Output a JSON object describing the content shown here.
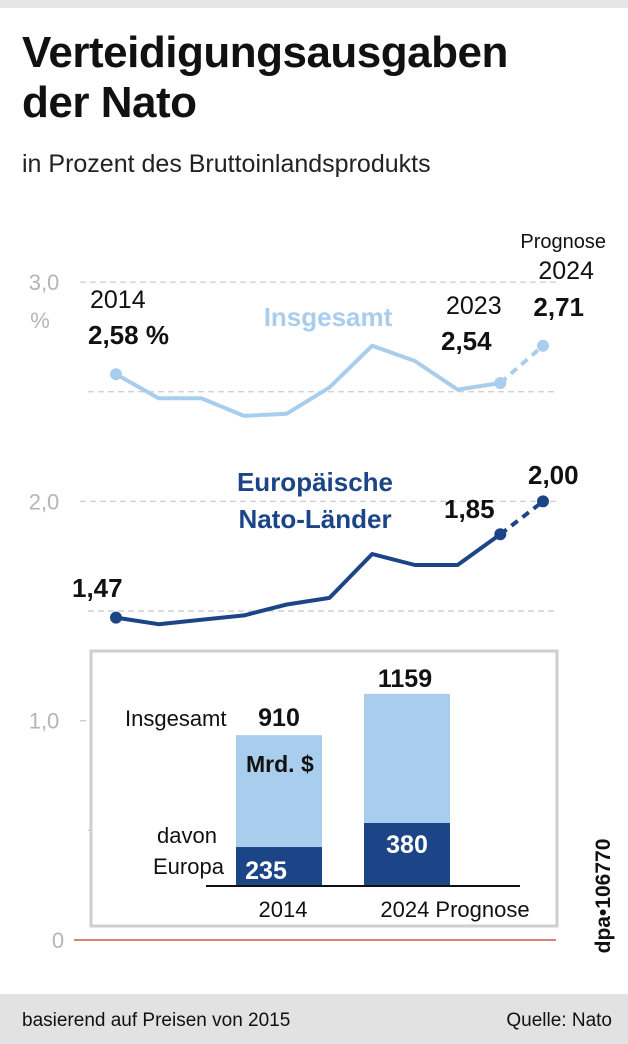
{
  "title_line1": "Verteidigungsausgaben",
  "title_line2": "der Nato",
  "subtitle": "in Prozent des Bruttoinlandsprodukts",
  "footer": {
    "note": "basierend auf Preisen von 2015",
    "source": "Quelle: Nato",
    "credit": "dpa•106770"
  },
  "colors": {
    "light_blue": "#a9cdec",
    "dark_blue": "#1c4587",
    "grid": "#cccccc",
    "axis_zero": "#d9534f",
    "inset_border": "#cfcfcf",
    "tick_text": "#b5b5b5"
  },
  "chart_data": [
    {
      "type": "line",
      "title": "Verteidigungsausgaben der Nato",
      "subtitle": "in Prozent des Bruttoinlandsprodukts",
      "unit_label": "%",
      "ylim": [
        0,
        3.0
      ],
      "yticks": [
        {
          "value": 3.0,
          "label": "3,0"
        },
        {
          "value": 2.0,
          "label": "2,0"
        },
        {
          "value": 1.0,
          "label": "1,0"
        },
        {
          "value": 0,
          "label": "0"
        }
      ],
      "minor_gridlines": [
        2.5,
        1.5,
        0.5
      ],
      "x": [
        2014,
        2015,
        2016,
        2017,
        2018,
        2019,
        2020,
        2021,
        2022,
        2023,
        2024
      ],
      "forecast_from": 2023,
      "series": [
        {
          "name": "Insgesamt",
          "color": "#a9cdec",
          "values": [
            2.58,
            2.47,
            2.47,
            2.39,
            2.4,
            2.52,
            2.71,
            2.64,
            2.51,
            2.54,
            2.71
          ]
        },
        {
          "name": "Europäische Nato-Länder",
          "name_line1": "Europäische",
          "name_line2": "Nato-Länder",
          "color": "#1c4587",
          "values": [
            1.47,
            1.44,
            1.46,
            1.48,
            1.53,
            1.56,
            1.76,
            1.71,
            1.71,
            1.85,
            2.0
          ]
        }
      ],
      "annotations": [
        {
          "series": 0,
          "year": "2014",
          "value": "2,58 %"
        },
        {
          "series": 0,
          "year": "2023",
          "value": "2,54"
        },
        {
          "series": 0,
          "prefix": "Prognose",
          "year": "2024",
          "value": "2,71"
        },
        {
          "series": 1,
          "value": "1,47"
        },
        {
          "series": 1,
          "value": "1,85"
        },
        {
          "series": 1,
          "value": "2,00"
        }
      ]
    },
    {
      "type": "bar",
      "unit": "Mrd. $",
      "categories": [
        "2014",
        "2024 Prognose"
      ],
      "series": [
        {
          "name": "Insgesamt",
          "color": "#a9cdec",
          "values": [
            910,
            1159
          ]
        },
        {
          "name": "davon Europa",
          "name_line1": "davon",
          "name_line2": "Europa",
          "color": "#1c4587",
          "values": [
            235,
            380
          ]
        }
      ],
      "labels": {
        "total_2014": "910",
        "total_2024": "1159",
        "europe_2014": "235",
        "europe_2024": "380"
      }
    }
  ]
}
